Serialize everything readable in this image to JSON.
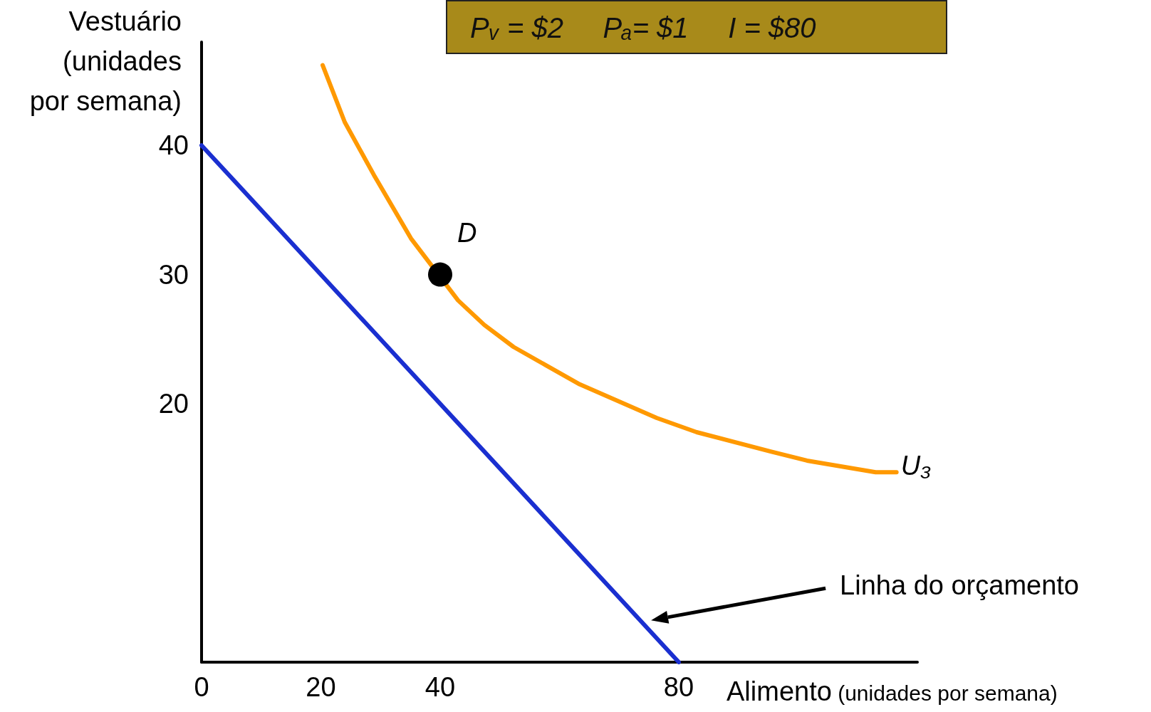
{
  "chart_data": {
    "type": "line",
    "xlabel": "Alimento (unidades por semana)",
    "ylabel": "Vestuário (unidades por semana)",
    "annotations": [
      "Pᵥ = $2     Pₐ= $1     I = $80"
    ],
    "xlim": [
      0,
      120
    ],
    "ylim": [
      0,
      48
    ],
    "xticks": [
      0,
      20,
      40,
      80
    ],
    "yticks": [
      20,
      30,
      40
    ],
    "grid": false,
    "legend": false,
    "series": [
      {
        "name": "Linha do orçamento",
        "color": "#1a2fd0",
        "x": [
          0,
          80
        ],
        "values": [
          40,
          0
        ]
      },
      {
        "name": "U₃",
        "color": "#ff9900",
        "x": [
          20.3,
          24,
          28.9,
          35.1,
          43,
          47.4,
          52.3,
          63.4,
          76.3,
          83,
          95.4,
          101.5,
          113,
          116.5
        ],
        "values": [
          46.2,
          41.8,
          37.7,
          32.8,
          28,
          26.1,
          24.4,
          21.5,
          18.9,
          17.8,
          16.3,
          15.6,
          14.7,
          14.7
        ]
      },
      {
        "name": "D",
        "type": "scatter",
        "marker": "circle",
        "color": "#000000",
        "x": [
          40
        ],
        "values": [
          30
        ]
      }
    ]
  }
}
